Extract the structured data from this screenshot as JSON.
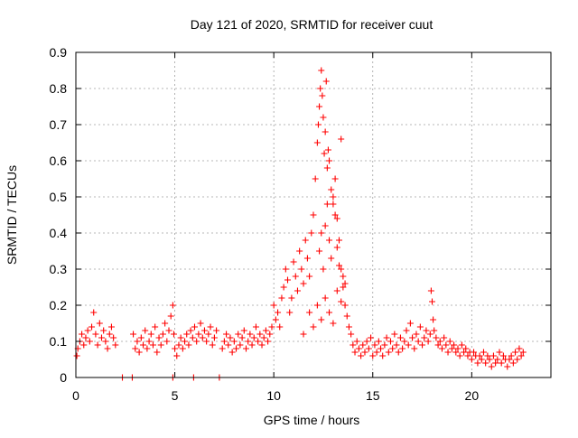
{
  "colors": {
    "series": "#ff0000",
    "grid": "#a0a0a0",
    "axis": "#000000",
    "background": "#ffffff"
  },
  "chart_data": {
    "type": "scatter",
    "title": "Day 121 of 2020, SRMTID for receiver cuut",
    "xlabel": "GPS time / hours",
    "ylabel": "SRMTID / TECUs",
    "xlim": [
      0,
      24
    ],
    "ylim": [
      0,
      0.9
    ],
    "xticks": [
      0,
      5,
      10,
      15,
      20
    ],
    "xtick_labels": [
      "0",
      "5",
      "10",
      "15",
      "20"
    ],
    "yticks": [
      0,
      0.1,
      0.2,
      0.3,
      0.4,
      0.5,
      0.6,
      0.7,
      0.8,
      0.9
    ],
    "ytick_labels": [
      "0",
      "0.1",
      "0.2",
      "0.3",
      "0.4",
      "0.5",
      "0.6",
      "0.7",
      "0.8",
      "0.9"
    ],
    "grid": true,
    "marker": "plus",
    "series": [
      {
        "name": "SRMTID",
        "x": [
          0.05,
          0.1,
          0.2,
          0.3,
          0.4,
          0.5,
          0.6,
          0.7,
          0.8,
          0.9,
          1.0,
          1.1,
          1.2,
          1.3,
          1.4,
          1.5,
          1.6,
          1.7,
          1.8,
          1.9,
          2.0,
          2.35,
          2.85,
          2.9,
          3.0,
          3.1,
          3.2,
          3.3,
          3.4,
          3.5,
          3.6,
          3.7,
          3.8,
          3.9,
          4.0,
          4.1,
          4.2,
          4.3,
          4.4,
          4.5,
          4.6,
          4.7,
          4.8,
          4.9,
          4.95,
          4.9,
          5.0,
          5.1,
          5.2,
          5.3,
          5.4,
          5.5,
          5.6,
          5.7,
          5.8,
          5.9,
          6.0,
          6.1,
          6.2,
          6.3,
          6.4,
          6.5,
          6.6,
          6.7,
          6.8,
          6.9,
          7.0,
          7.1,
          5.95,
          7.25,
          7.4,
          7.5,
          7.6,
          7.7,
          7.8,
          7.9,
          8.0,
          8.1,
          8.2,
          8.3,
          8.4,
          8.5,
          8.6,
          8.7,
          8.8,
          8.9,
          9.0,
          9.1,
          9.2,
          9.3,
          9.4,
          9.5,
          9.6,
          9.7,
          9.8,
          9.9,
          10.0,
          10.1,
          10.2,
          10.3,
          10.4,
          10.5,
          10.6,
          10.7,
          10.8,
          10.9,
          11.0,
          11.1,
          11.2,
          11.3,
          11.4,
          11.5,
          11.6,
          11.7,
          11.8,
          11.9,
          12.0,
          12.1,
          12.2,
          12.25,
          12.3,
          12.35,
          12.4,
          12.45,
          12.5,
          12.55,
          12.6,
          12.65,
          12.7,
          12.75,
          12.8,
          12.9,
          13.0,
          13.1,
          13.2,
          13.3,
          13.4,
          13.5,
          13.6,
          13.7,
          13.8,
          13.9,
          12.3,
          12.4,
          12.5,
          12.6,
          12.7,
          12.8,
          12.9,
          13.0,
          13.1,
          13.2,
          13.3,
          13.4,
          13.5,
          11.5,
          11.8,
          12.0,
          12.2,
          12.4,
          12.6,
          12.8,
          13.0,
          13.2,
          13.4,
          13.6,
          14.0,
          14.1,
          14.2,
          14.3,
          14.4,
          14.5,
          14.6,
          14.7,
          14.8,
          14.9,
          15.0,
          15.1,
          15.2,
          15.3,
          15.4,
          15.5,
          15.6,
          15.7,
          15.8,
          15.9,
          16.0,
          16.1,
          16.2,
          16.3,
          16.4,
          16.5,
          16.6,
          16.7,
          16.8,
          16.9,
          17.0,
          17.1,
          17.2,
          17.3,
          17.4,
          17.5,
          17.6,
          17.7,
          17.8,
          17.9,
          17.95,
          18.0,
          18.05,
          18.1,
          18.2,
          18.3,
          18.4,
          18.5,
          18.6,
          18.7,
          18.8,
          18.9,
          19.0,
          19.1,
          19.2,
          19.3,
          19.4,
          19.5,
          19.6,
          19.7,
          19.8,
          19.9,
          20.0,
          20.1,
          20.2,
          20.3,
          20.4,
          20.5,
          20.6,
          20.7,
          20.8,
          20.9,
          21.0,
          21.1,
          21.2,
          21.3,
          21.4,
          21.5,
          21.6,
          21.7,
          21.8,
          21.9,
          22.0,
          22.1,
          22.2,
          22.3,
          22.4,
          22.5,
          22.6
        ],
        "y": [
          0.06,
          0.08,
          0.1,
          0.12,
          0.09,
          0.11,
          0.13,
          0.1,
          0.14,
          0.18,
          0.12,
          0.09,
          0.15,
          0.11,
          0.13,
          0.1,
          0.08,
          0.12,
          0.14,
          0.11,
          0.09,
          0.0,
          0.0,
          0.12,
          0.08,
          0.1,
          0.07,
          0.11,
          0.09,
          0.13,
          0.08,
          0.1,
          0.12,
          0.09,
          0.14,
          0.07,
          0.11,
          0.09,
          0.12,
          0.15,
          0.1,
          0.13,
          0.17,
          0.2,
          0.12,
          0.0,
          0.08,
          0.06,
          0.09,
          0.11,
          0.08,
          0.1,
          0.12,
          0.09,
          0.13,
          0.11,
          0.14,
          0.1,
          0.12,
          0.15,
          0.11,
          0.13,
          0.1,
          0.12,
          0.14,
          0.09,
          0.11,
          0.13,
          0.0,
          0.0,
          0.08,
          0.1,
          0.12,
          0.09,
          0.11,
          0.07,
          0.1,
          0.08,
          0.12,
          0.09,
          0.11,
          0.13,
          0.08,
          0.1,
          0.12,
          0.09,
          0.11,
          0.14,
          0.1,
          0.12,
          0.09,
          0.11,
          0.13,
          0.1,
          0.12,
          0.14,
          0.2,
          0.16,
          0.18,
          0.14,
          0.22,
          0.25,
          0.3,
          0.27,
          0.18,
          0.22,
          0.32,
          0.28,
          0.24,
          0.35,
          0.3,
          0.26,
          0.38,
          0.33,
          0.28,
          0.4,
          0.45,
          0.55,
          0.65,
          0.7,
          0.75,
          0.8,
          0.85,
          0.78,
          0.72,
          0.62,
          0.68,
          0.82,
          0.58,
          0.63,
          0.6,
          0.52,
          0.48,
          0.55,
          0.44,
          0.38,
          0.3,
          0.25,
          0.2,
          0.17,
          0.14,
          0.12,
          0.35,
          0.4,
          0.3,
          0.42,
          0.48,
          0.38,
          0.33,
          0.5,
          0.45,
          0.36,
          0.31,
          0.66,
          0.28,
          0.12,
          0.18,
          0.14,
          0.2,
          0.16,
          0.22,
          0.18,
          0.15,
          0.24,
          0.21,
          0.26,
          0.09,
          0.07,
          0.1,
          0.08,
          0.06,
          0.09,
          0.07,
          0.1,
          0.08,
          0.11,
          0.06,
          0.09,
          0.07,
          0.1,
          0.08,
          0.06,
          0.09,
          0.11,
          0.07,
          0.1,
          0.08,
          0.12,
          0.09,
          0.07,
          0.11,
          0.08,
          0.1,
          0.13,
          0.09,
          0.15,
          0.11,
          0.08,
          0.12,
          0.1,
          0.14,
          0.09,
          0.11,
          0.13,
          0.1,
          0.12,
          0.24,
          0.21,
          0.16,
          0.13,
          0.11,
          0.09,
          0.1,
          0.08,
          0.11,
          0.09,
          0.07,
          0.1,
          0.08,
          0.09,
          0.07,
          0.08,
          0.06,
          0.09,
          0.07,
          0.08,
          0.06,
          0.07,
          0.05,
          0.07,
          0.06,
          0.04,
          0.06,
          0.05,
          0.07,
          0.04,
          0.06,
          0.05,
          0.03,
          0.06,
          0.04,
          0.05,
          0.07,
          0.04,
          0.06,
          0.05,
          0.03,
          0.05,
          0.06,
          0.04,
          0.07,
          0.05,
          0.08,
          0.06,
          0.07
        ]
      }
    ]
  }
}
